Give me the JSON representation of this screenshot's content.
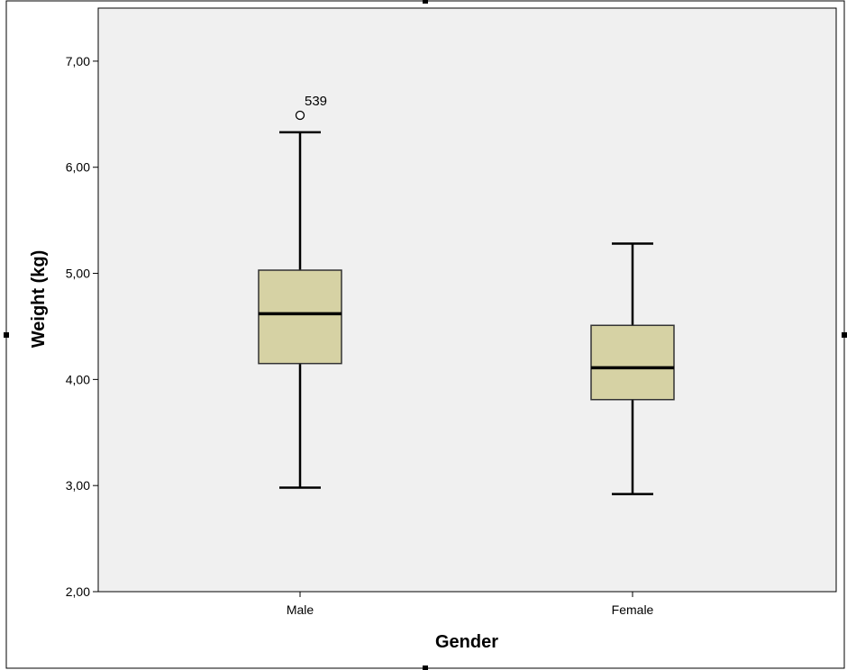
{
  "chart_data": {
    "type": "box",
    "xlabel": "Gender",
    "ylabel": "Weight (kg)",
    "ylim": [
      2,
      7.5
    ],
    "yticks": [
      2,
      3,
      4,
      5,
      6,
      7
    ],
    "ytick_labels": [
      "2,00",
      "3,00",
      "4,00",
      "5,00",
      "6,00",
      "7,00"
    ],
    "grid": false,
    "colors": {
      "box_fill": "#d6d2a4",
      "plot_background": "#f0f0f0",
      "line": "#000000"
    },
    "categories": [
      "Male",
      "Female"
    ],
    "boxes": [
      {
        "category": "Male",
        "whisker_low": 2.98,
        "q1": 4.15,
        "median": 4.62,
        "q3": 5.03,
        "whisker_high": 6.33,
        "outliers": [
          {
            "value": 6.49,
            "label": "539"
          }
        ]
      },
      {
        "category": "Female",
        "whisker_low": 2.92,
        "q1": 3.81,
        "median": 4.11,
        "q3": 4.51,
        "whisker_high": 5.28,
        "outliers": []
      }
    ]
  }
}
